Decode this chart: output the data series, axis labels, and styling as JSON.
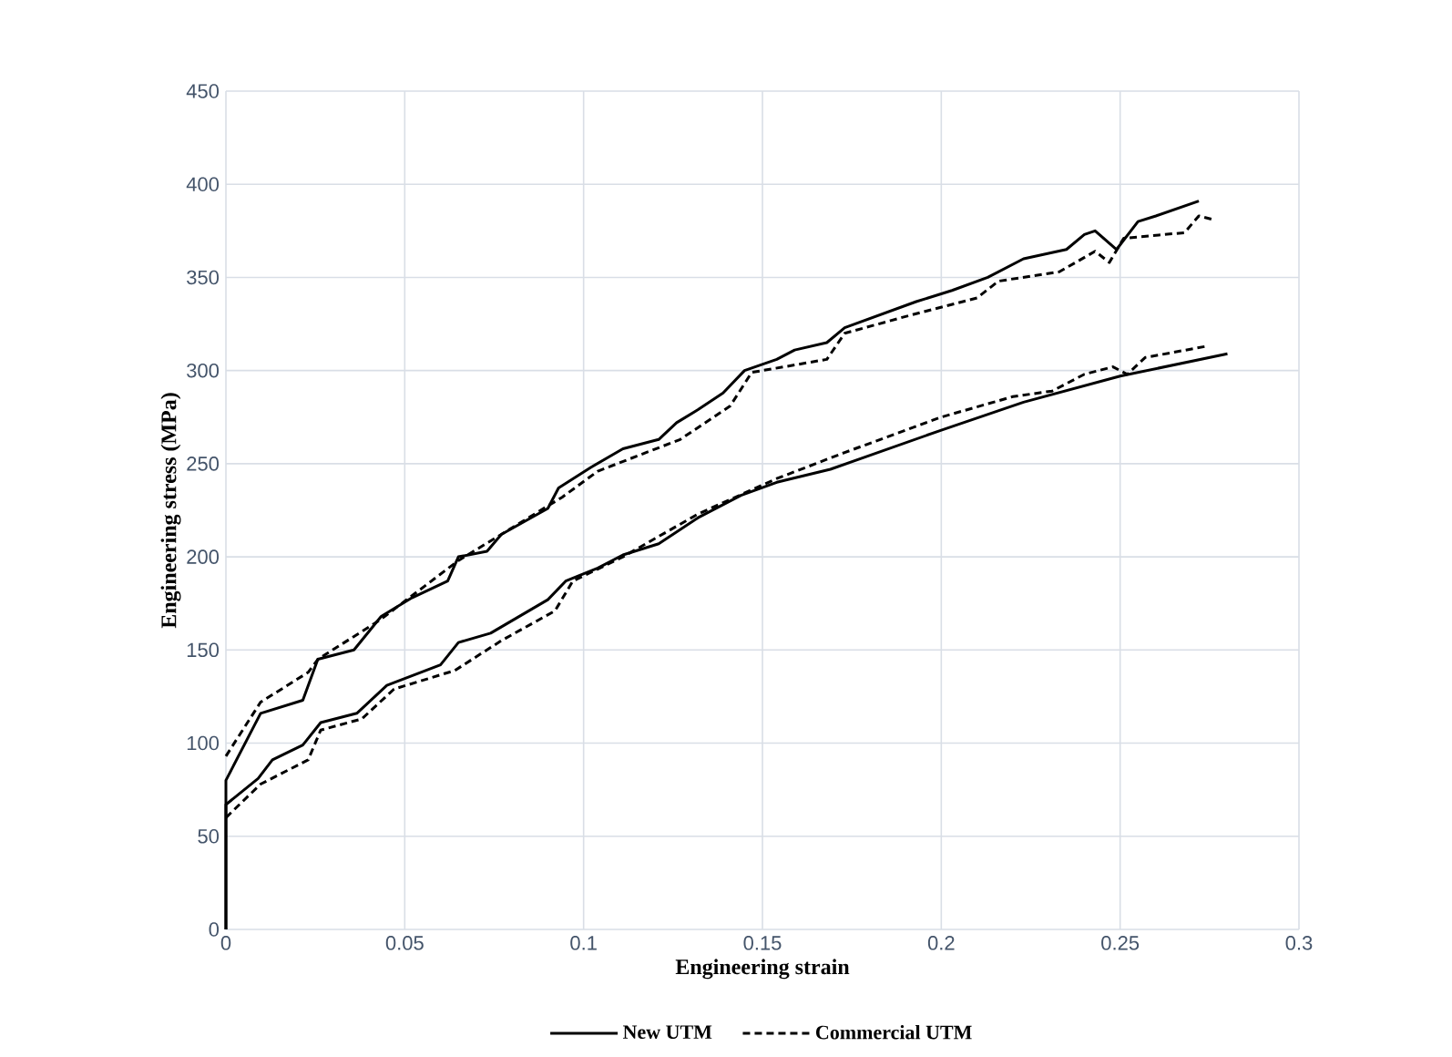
{
  "chart_data": {
    "type": "line",
    "xlabel": "Engineering strain",
    "ylabel": "Engineering stress (MPa)",
    "xlim": [
      0,
      0.3
    ],
    "ylim": [
      0,
      450
    ],
    "xticks": [
      0,
      0.05,
      0.1,
      0.15,
      0.2,
      0.25,
      0.3
    ],
    "yticks": [
      0,
      50,
      100,
      150,
      200,
      250,
      300,
      350,
      400,
      450
    ],
    "grid": true,
    "legend": "bottom",
    "marker": "none",
    "series": [
      {
        "name": "New UTM",
        "color": "#000000",
        "line_style": "solid",
        "x": [
          0,
          0,
          0.0097,
          0.0215,
          0.0257,
          0.0358,
          0.0434,
          0.052,
          0.062,
          0.065,
          0.073,
          0.077,
          0.09,
          0.093,
          0.102,
          0.111,
          0.121,
          0.126,
          0.132,
          0.139,
          0.145,
          0.154,
          0.159,
          0.168,
          0.173,
          0.183,
          0.193,
          0.203,
          0.213,
          0.223,
          0.235,
          0.24,
          0.243,
          0.249,
          0.255,
          0.26,
          0.272
        ],
        "values": [
          0,
          80,
          116,
          123,
          145,
          150,
          168,
          178,
          187,
          200,
          203,
          212,
          226,
          237,
          248,
          258,
          263,
          272,
          279,
          288,
          300,
          306,
          311,
          315,
          323,
          330,
          337,
          343,
          350,
          360,
          365,
          373,
          375,
          365,
          380,
          383,
          391
        ]
      },
      {
        "name": "Commercial UTM",
        "color": "#000000",
        "line_style": "dashed",
        "x": [
          0,
          0.0097,
          0.023,
          0.0257,
          0.043,
          0.065,
          0.094,
          0.104,
          0.127,
          0.141,
          0.147,
          0.168,
          0.173,
          0.19,
          0.21,
          0.216,
          0.233,
          0.243,
          0.247,
          0.251,
          0.268,
          0.272,
          0.276
        ],
        "values": [
          93,
          122,
          138,
          145,
          166,
          198,
          232,
          246,
          263,
          281,
          299,
          306,
          320,
          329,
          339,
          348,
          353,
          364,
          358,
          371,
          374,
          383,
          381
        ]
      },
      {
        "color": "#000000",
        "line_style": "solid",
        "x": [
          0,
          0,
          0.009,
          0.013,
          0.0215,
          0.0265,
          0.0366,
          0.045,
          0.06,
          0.065,
          0.074,
          0.09,
          0.095,
          0.104,
          0.111,
          0.121,
          0.132,
          0.144,
          0.154,
          0.169,
          0.2,
          0.223,
          0.25,
          0.28
        ],
        "values": [
          0,
          67,
          81,
          91,
          99,
          111,
          116,
          131,
          142,
          154,
          159,
          177,
          187,
          194,
          201,
          207,
          221,
          233,
          240,
          247,
          268,
          283,
          297,
          309
        ]
      },
      {
        "color": "#000000",
        "line_style": "dashed",
        "x": [
          0,
          0.0097,
          0.023,
          0.0265,
          0.038,
          0.047,
          0.064,
          0.077,
          0.092,
          0.097,
          0.111,
          0.132,
          0.154,
          0.173,
          0.2,
          0.22,
          0.231,
          0.24,
          0.248,
          0.252,
          0.257,
          0.274
        ],
        "values": [
          60,
          78,
          91,
          107,
          113,
          129,
          139,
          155,
          171,
          187,
          200,
          223,
          242,
          256,
          275,
          286,
          289,
          298,
          302,
          298,
          307,
          313
        ]
      }
    ]
  }
}
